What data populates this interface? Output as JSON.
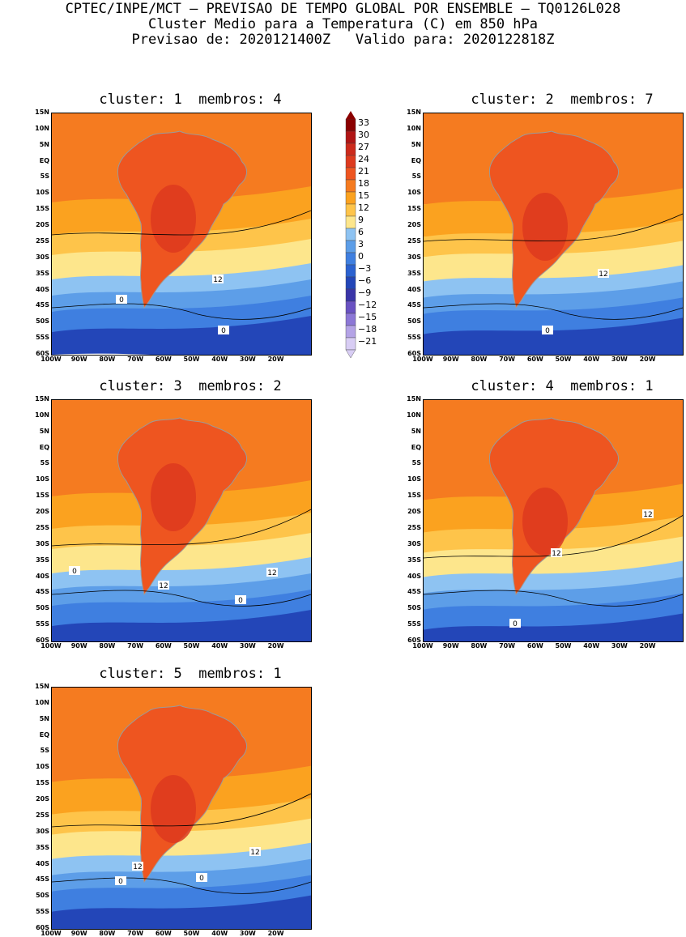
{
  "header": {
    "line1": "CPTEC/INPE/MCT – PREVISAO DE TEMPO GLOBAL POR ENSEMBLE – TQ0126L028",
    "line2": "Cluster Medio para a Temperatura (C) em 850 hPa",
    "line3": "Previsao de: 2020121400Z   Valido para: 2020122818Z"
  },
  "panels": [
    {
      "title": "cluster: 1  membros: 4",
      "contour_labels": [
        "12",
        "0",
        "0"
      ]
    },
    {
      "title": "cluster: 2  membros: 7",
      "contour_labels": [
        "12",
        "0"
      ]
    },
    {
      "title": "cluster: 3  membros: 2",
      "contour_labels": [
        "0",
        "12",
        "12",
        "0"
      ]
    },
    {
      "title": "cluster: 4  membros: 1",
      "contour_labels": [
        "12",
        "12",
        "0"
      ]
    },
    {
      "title": "cluster: 5  membros: 1",
      "contour_labels": [
        "12",
        "12",
        "0",
        "0"
      ]
    }
  ],
  "lat_ticks": [
    "15N",
    "10N",
    "5N",
    "EQ",
    "5S",
    "10S",
    "15S",
    "20S",
    "25S",
    "30S",
    "35S",
    "40S",
    "45S",
    "50S",
    "55S",
    "60S"
  ],
  "lon_ticks": [
    "100W",
    "90W",
    "80W",
    "70W",
    "60W",
    "50W",
    "40W",
    "30W",
    "20W"
  ],
  "legend": {
    "labels": [
      "33",
      "30",
      "27",
      "24",
      "21",
      "18",
      "15",
      "12",
      "9",
      "6",
      "3",
      "0",
      "-3",
      "-6",
      "-9",
      "-12",
      "-15",
      "-18",
      "-21"
    ],
    "colors": [
      "#8b0000",
      "#b01515",
      "#cc2a1c",
      "#dd3a1e",
      "#ee5520",
      "#f57b20",
      "#fba21f",
      "#fec44a",
      "#fde68c",
      "#8ec3f2",
      "#5d9ee8",
      "#3f7fe0",
      "#2b62d0",
      "#2346b8",
      "#3a35a8",
      "#6a52c2",
      "#8c77d6",
      "#b4a3e6",
      "#d8cdf4"
    ]
  }
}
